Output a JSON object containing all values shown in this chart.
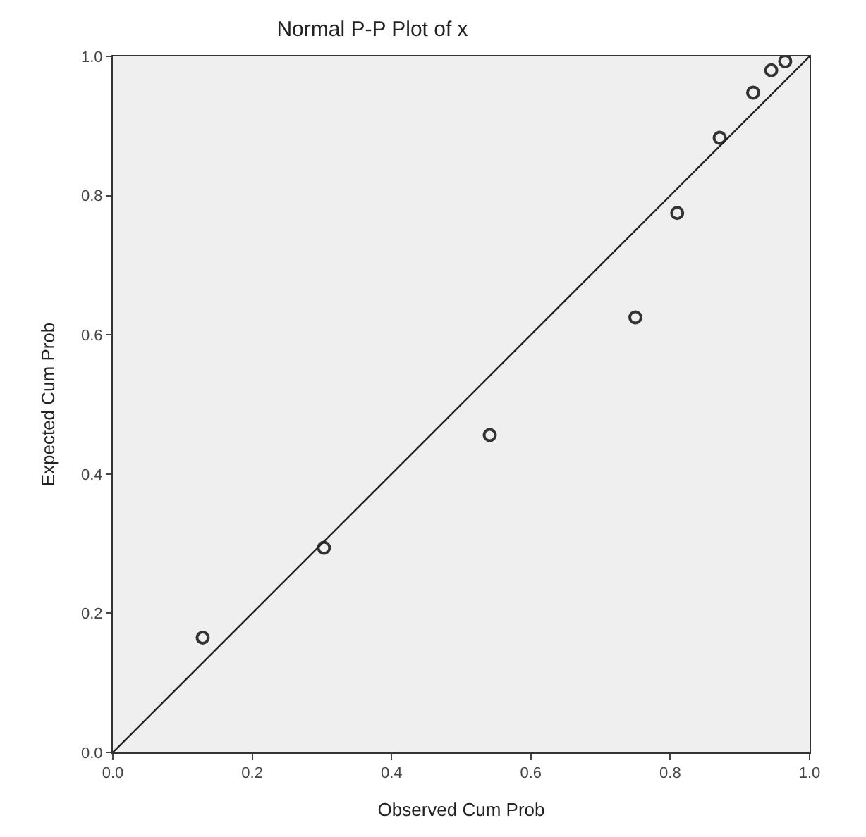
{
  "chart_data": {
    "type": "scatter",
    "title": "Normal P-P Plot of x",
    "xlabel": "Observed Cum Prob",
    "ylabel": "Expected Cum Prob",
    "xlim": [
      0,
      1
    ],
    "ylim": [
      0,
      1
    ],
    "xticks": [
      {
        "value": 0,
        "label": "0.0"
      },
      0.2,
      0.4,
      0.6,
      0.8,
      {
        "value": 1,
        "label": "1.0"
      }
    ],
    "yticks": [
      {
        "value": 0,
        "label": "0.0"
      },
      0.2,
      0.4,
      0.6,
      0.8,
      {
        "value": 1,
        "label": "1.0"
      }
    ],
    "grid": false,
    "legend": false,
    "marker": "circle",
    "series": [
      {
        "color": "#333333",
        "x": [
          0.129,
          0.303,
          0.541,
          0.75,
          0.81,
          0.871,
          0.919,
          0.945,
          0.965
        ],
        "values": [
          0.165,
          0.294,
          0.456,
          0.625,
          0.775,
          0.883,
          0.948,
          0.98,
          0.993
        ]
      },
      {
        "type": "line",
        "color": "#222222",
        "x": [
          0,
          1
        ],
        "values": [
          0,
          1
        ],
        "marker": "none",
        "line_style": "solid"
      }
    ]
  }
}
